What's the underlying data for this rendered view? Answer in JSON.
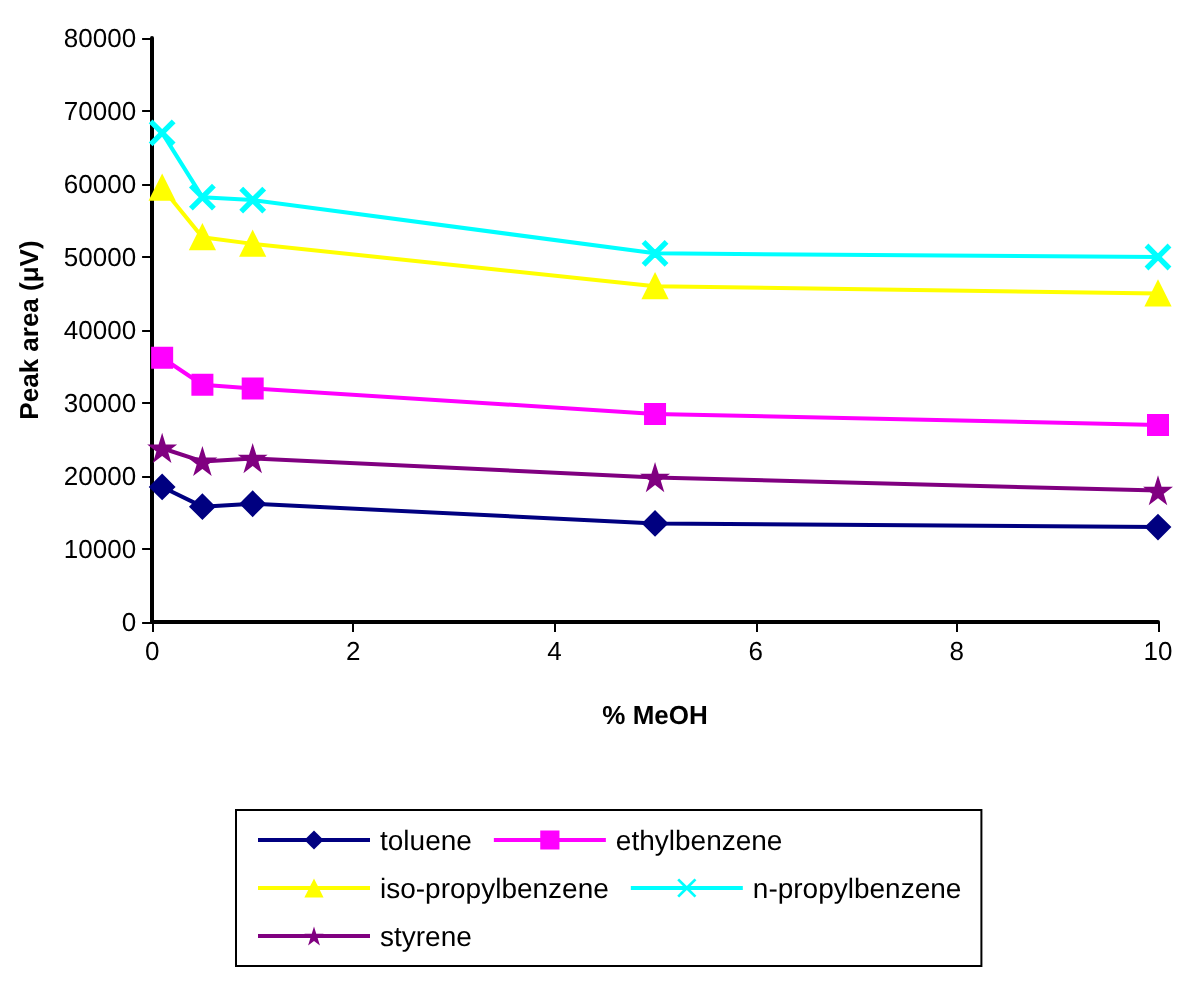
{
  "chart_data": {
    "type": "line",
    "xlabel": "% MeOH",
    "ylabel": "Peak area (μV)",
    "x": [
      0.1,
      0.5,
      1,
      5,
      10
    ],
    "xlim": [
      0,
      10
    ],
    "xticks": [
      0,
      2,
      4,
      6,
      8,
      10
    ],
    "ylim": [
      0,
      80000
    ],
    "yticks": [
      0,
      10000,
      20000,
      30000,
      40000,
      50000,
      60000,
      70000,
      80000
    ],
    "grid": false,
    "legend": "bottom",
    "line_style": "solid",
    "series": [
      {
        "name": "toluene",
        "color": "#000080",
        "marker": "diamond",
        "values": [
          18500,
          15800,
          16200,
          13500,
          13000
        ]
      },
      {
        "name": "ethylbenzene",
        "color": "#ff00ff",
        "marker": "square",
        "values": [
          36200,
          32500,
          32000,
          28500,
          27000
        ]
      },
      {
        "name": "iso-propylbenzene",
        "color": "#ffff00",
        "marker": "triangle",
        "values": [
          59500,
          52700,
          51800,
          46000,
          45000
        ]
      },
      {
        "name": "n-propylbenzene",
        "color": "#00ffff",
        "marker": "cross",
        "values": [
          67000,
          58200,
          57800,
          50500,
          50000
        ]
      },
      {
        "name": "styrene",
        "color": "#800080",
        "marker": "star",
        "values": [
          23800,
          22000,
          22400,
          19800,
          18000
        ]
      }
    ]
  }
}
